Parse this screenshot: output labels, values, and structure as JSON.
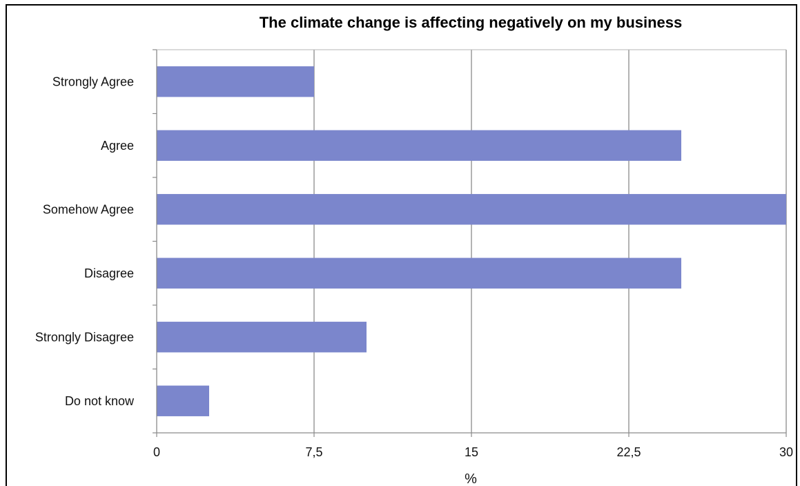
{
  "chart_data": {
    "type": "bar",
    "orientation": "horizontal",
    "title": "The climate change is affecting negatively on my business",
    "xlabel": "%",
    "ylabel": "",
    "categories": [
      "Strongly Agree",
      "Agree",
      "Somehow Agree",
      "Disagree",
      "Strongly Disagree",
      "Do not know"
    ],
    "values": [
      7.5,
      25,
      30,
      25,
      10,
      2.5
    ],
    "xlim": [
      0,
      30
    ],
    "ticks": [
      "0",
      "7,5",
      "15",
      "22,5",
      "30"
    ],
    "tick_values": [
      0,
      7.5,
      15,
      22.5,
      30
    ],
    "grid": "vertical",
    "bar_color": "#7b86cc",
    "legend": "none"
  }
}
